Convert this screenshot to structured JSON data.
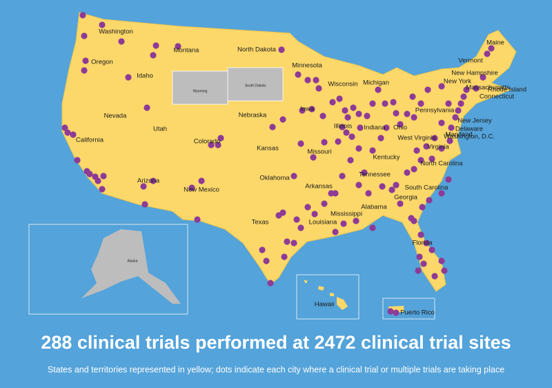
{
  "headline": "288 clinical trials performed at 2472 clinical trial sites",
  "caption": "States and territories represented in yellow; dots indicate each city where a clinical trial or multiple trials are taking place",
  "labels": [
    "Washington",
    "Montana",
    "North Dakota",
    "Minnesota",
    "Maine",
    "Oregon",
    "Idaho",
    "Wyoming",
    "South Dakota",
    "Wisconsin",
    "Michigan",
    "Vermont",
    "New Hampshire",
    "Massachusetts",
    "New York",
    "Rhode Island",
    "Connecticut",
    "Pennsylvania",
    "New Jersey",
    "Nevada",
    "Nebraska",
    "Iowa",
    "Illinois",
    "Indiana",
    "Ohio",
    "Utah",
    "Maryland",
    "Delaware",
    "Washington, D.C.",
    "California",
    "Colorado",
    "Kansas",
    "Missouri",
    "West Virginia",
    "Kentucky",
    "Virginia",
    "North Carolina",
    "Tennessee",
    "Oklahoma",
    "Arizona",
    "New Mexico",
    "Arkansas",
    "South Carolina",
    "Georgia",
    "Alabama",
    "Mississippi",
    "Louisiana",
    "Texas",
    "Florida",
    "Alaska",
    "Hawaii",
    "Puerto Rico"
  ]
}
